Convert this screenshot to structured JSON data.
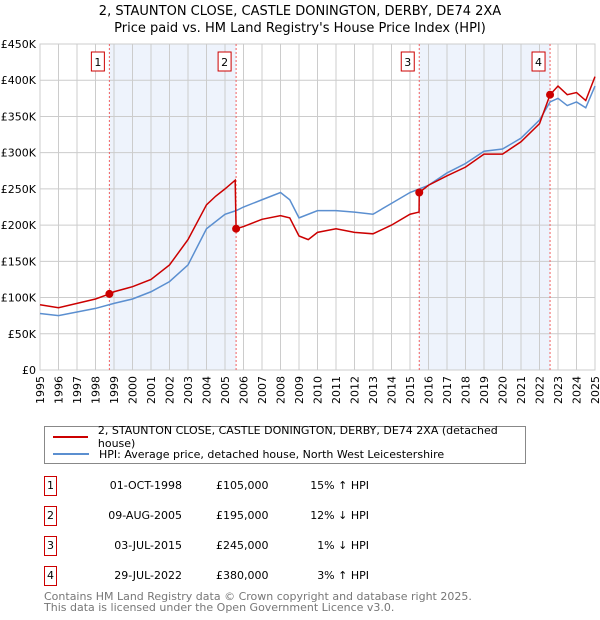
{
  "chart_data": {
    "type": "line",
    "title": "2, STAUNTON CLOSE, CASTLE DONINGTON, DERBY, DE74 2XA",
    "subtitle": "Price paid vs. HM Land Registry's House Price Index (HPI)",
    "xlim": [
      1995,
      2025
    ],
    "ylim": [
      0,
      450000
    ],
    "x_ticks": [
      "1995",
      "1996",
      "1997",
      "1998",
      "1999",
      "2000",
      "2001",
      "2002",
      "2003",
      "2004",
      "2005",
      "2006",
      "2007",
      "2008",
      "2009",
      "2010",
      "2011",
      "2012",
      "2013",
      "2014",
      "2015",
      "2016",
      "2017",
      "2018",
      "2019",
      "2020",
      "2021",
      "2022",
      "2023",
      "2024",
      "2025"
    ],
    "y_ticks": [
      {
        "v": 0,
        "l": "£0"
      },
      {
        "v": 50000,
        "l": "£50K"
      },
      {
        "v": 100000,
        "l": "£100K"
      },
      {
        "v": 150000,
        "l": "£150K"
      },
      {
        "v": 200000,
        "l": "£200K"
      },
      {
        "v": 250000,
        "l": "£250K"
      },
      {
        "v": 300000,
        "l": "£300K"
      },
      {
        "v": 350000,
        "l": "£350K"
      },
      {
        "v": 400000,
        "l": "£400K"
      },
      {
        "v": 450000,
        "l": "£450K"
      }
    ],
    "grid": true,
    "series": [
      {
        "name": "2, STAUNTON CLOSE, CASTLE DONINGTON, DERBY, DE74 2XA (detached house)",
        "color": "#cc0000",
        "x": [
          1995,
          1996,
          1997,
          1998,
          1998.75,
          1999,
          2000,
          2001,
          2002,
          2003,
          2004,
          2004.5,
          2005,
          2005.55,
          2005.6,
          2006,
          2007,
          2008,
          2008.5,
          2009,
          2009.5,
          2010,
          2011,
          2012,
          2013,
          2014,
          2015,
          2015.49,
          2015.5,
          2016,
          2017,
          2018,
          2019,
          2020,
          2021,
          2022,
          2022.57,
          2023,
          2023.5,
          2024,
          2024.5,
          2025
        ],
        "y": [
          90000,
          86000,
          92000,
          98000,
          105000,
          108000,
          115000,
          125000,
          145000,
          180000,
          228000,
          240000,
          250000,
          262000,
          195000,
          198000,
          208000,
          213000,
          210000,
          185000,
          180000,
          190000,
          195000,
          190000,
          188000,
          200000,
          215000,
          218000,
          245000,
          255000,
          268000,
          280000,
          298000,
          298000,
          315000,
          340000,
          380000,
          392000,
          380000,
          383000,
          372000,
          405000
        ]
      },
      {
        "name": "HPI: Average price, detached house, North West Leicestershire",
        "color": "#5b8fd0",
        "x": [
          1995,
          1996,
          1997,
          1998,
          1999,
          2000,
          2001,
          2002,
          2003,
          2004,
          2005,
          2005.6,
          2006,
          2007,
          2008,
          2008.5,
          2009,
          2010,
          2011,
          2012,
          2013,
          2014,
          2015,
          2016,
          2017,
          2018,
          2019,
          2020,
          2021,
          2022,
          2022.57,
          2023,
          2023.5,
          2024,
          2024.5,
          2025
        ],
        "y": [
          78000,
          75000,
          80000,
          85000,
          92000,
          98000,
          108000,
          122000,
          145000,
          195000,
          215000,
          220000,
          225000,
          235000,
          245000,
          235000,
          210000,
          220000,
          220000,
          218000,
          215000,
          230000,
          245000,
          255000,
          272000,
          285000,
          302000,
          305000,
          320000,
          345000,
          370000,
          375000,
          365000,
          370000,
          362000,
          392000
        ]
      }
    ],
    "sales": [
      {
        "n": "1",
        "x": 1998.75,
        "y": 105000,
        "date": "01-OCT-1998",
        "price": "£105,000",
        "hpi": "15% ↑ HPI"
      },
      {
        "n": "2",
        "x": 2005.6,
        "y": 195000,
        "date": "09-AUG-2005",
        "price": "£195,000",
        "hpi": "12% ↓ HPI"
      },
      {
        "n": "3",
        "x": 2015.5,
        "y": 245000,
        "date": "03-JUL-2015",
        "price": "£245,000",
        "hpi": "1% ↓ HPI"
      },
      {
        "n": "4",
        "x": 2022.57,
        "y": 380000,
        "date": "29-JUL-2022",
        "price": "£380,000",
        "hpi": "3% ↑ HPI"
      }
    ],
    "shaded_spans": [
      [
        1998.75,
        2005.6
      ],
      [
        2015.5,
        2022.57
      ]
    ],
    "legend_placement": "below"
  },
  "footer": {
    "line1": "Contains HM Land Registry data © Crown copyright and database right 2025.",
    "line2": "This data is licensed under the Open Government Licence v3.0."
  }
}
